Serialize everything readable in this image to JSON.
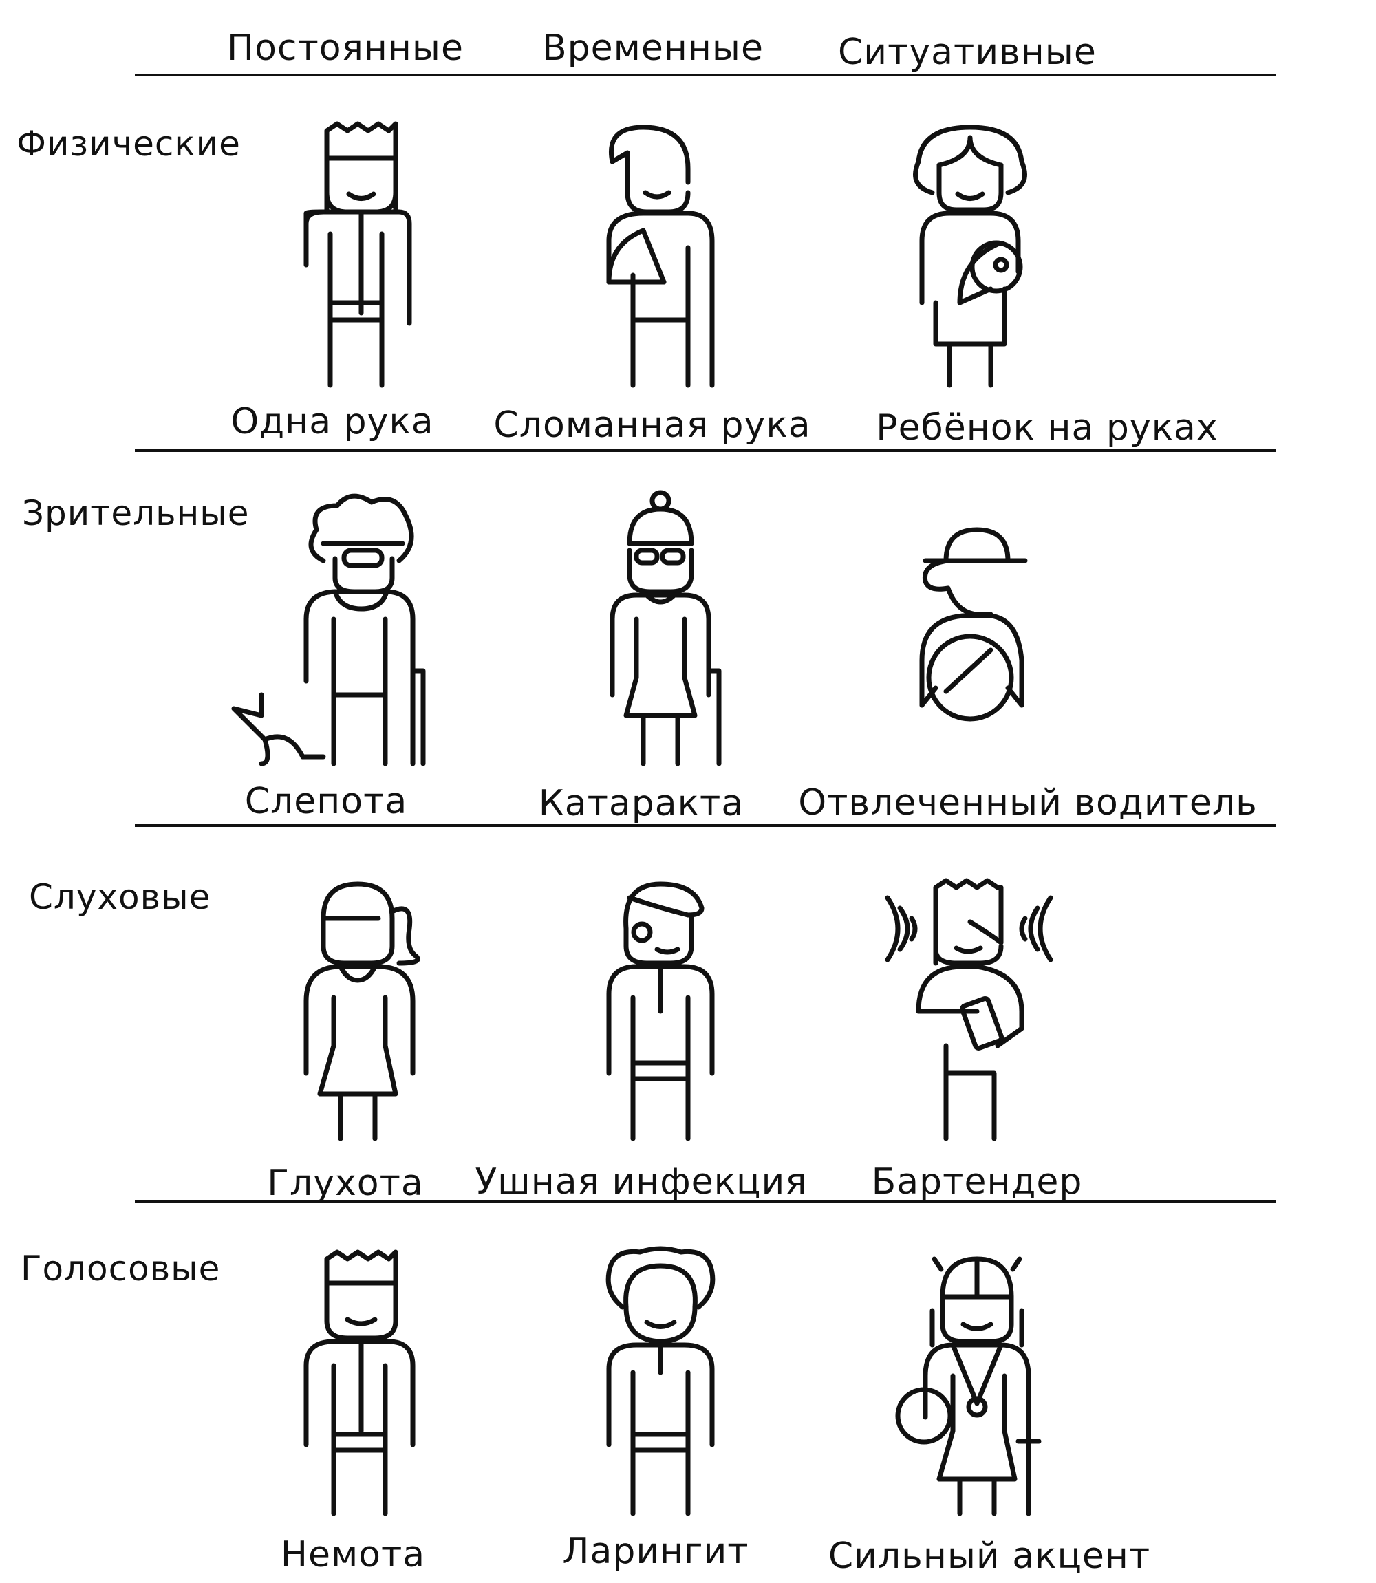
{
  "columns": [
    "Постоянные",
    "Временные",
    "Ситуативные"
  ],
  "rows": [
    {
      "label": "Физические",
      "items": [
        "Одна рука",
        "Сломанная рука",
        "Ребёнок на руках"
      ]
    },
    {
      "label": "Зрительные",
      "items": [
        "Слепота",
        "Катаракта",
        "Отвлеченный водитель"
      ]
    },
    {
      "label": "Слуховые",
      "items": [
        "Глухота",
        "Ушная инфекция",
        "Бартендер"
      ]
    },
    {
      "label": "Голосовые",
      "items": [
        "Немота",
        "Ларингит",
        "Сильный акцент"
      ]
    }
  ],
  "icons": [
    [
      "person-one-arm-icon",
      "person-broken-arm-icon",
      "person-holding-baby-icon"
    ],
    [
      "person-blind-with-guide-dog-icon",
      "person-cataract-with-cane-icon",
      "distracted-driver-icon"
    ],
    [
      "person-deaf-icon",
      "person-ear-infection-icon",
      "bartender-icon"
    ],
    [
      "person-mute-icon",
      "person-laryngitis-icon",
      "person-heavy-accent-icon"
    ]
  ]
}
